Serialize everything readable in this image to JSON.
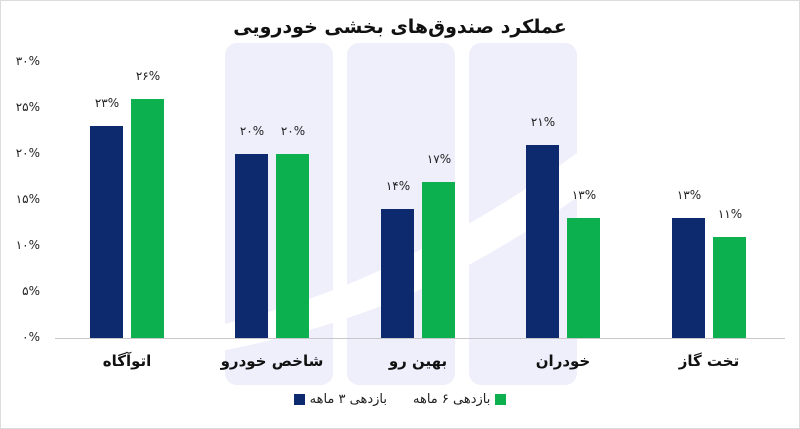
{
  "colors": {
    "series_3m": "#0e2a6e",
    "series_6m": "#0cb04f",
    "watermark": "#efeefb"
  },
  "chart_data": {
    "type": "bar",
    "title": "عملکرد صندوق‌های بخشی خودرویی",
    "xlabel": "",
    "ylabel": "",
    "ylim": [
      0,
      30
    ],
    "y_ticks": [
      "۰%",
      "۵%",
      "۱۰%",
      "۱۵%",
      "۲۰%",
      "۲۵%",
      "۳۰%"
    ],
    "grid": false,
    "legend_position": "bottom",
    "categories": [
      "اتوآگاه",
      "شاخص خودرو",
      "بهین رو",
      "خودران",
      "تخت گاز"
    ],
    "series": [
      {
        "name": "بازدهی ۳ ماهه",
        "color": "#0e2a6e",
        "values": [
          23,
          20,
          14,
          21,
          13
        ],
        "labels": [
          "۲۳%",
          "۲۰%",
          "۱۴%",
          "۲۱%",
          "۱۳%"
        ]
      },
      {
        "name": "بازدهی ۶ ماهه",
        "color": "#0cb04f",
        "values": [
          26,
          20,
          17,
          13,
          11
        ],
        "labels": [
          "۲۶%",
          "۲۰%",
          "۱۷%",
          "۱۳%",
          "۱۱%"
        ]
      }
    ]
  },
  "legend": {
    "items": [
      {
        "label": "بازدهی ۳ ماهه",
        "color": "#0e2a6e"
      },
      {
        "label": "بازدهی ۶ ماهه",
        "color": "#0cb04f"
      }
    ]
  }
}
